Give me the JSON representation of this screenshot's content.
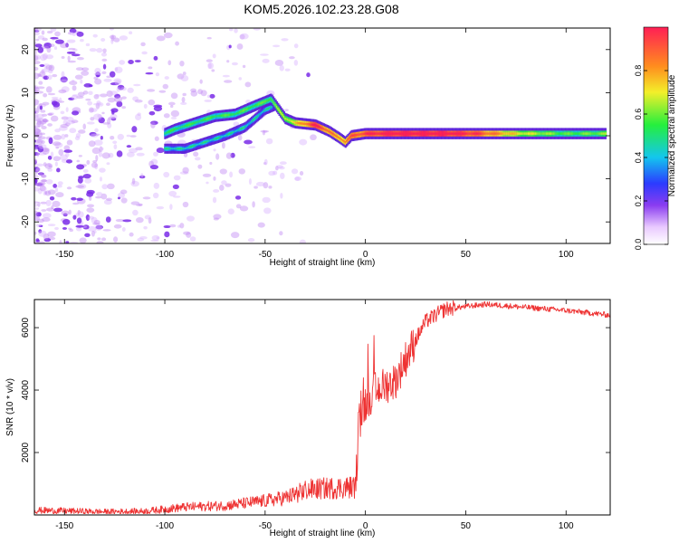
{
  "title": "KOM5.2026.102.23.28.G08",
  "colors": {
    "snr_line": "#ee3333",
    "background": "#ffffff",
    "axis": "#000000",
    "colormap": [
      "#ffffff",
      "#e9c9ff",
      "#8a3cf0",
      "#2b3bff",
      "#13c6ee",
      "#25ef3d",
      "#f3ef2a",
      "#ff8d1e",
      "#ff1f55"
    ]
  },
  "chart_data": [
    {
      "type": "heatmap",
      "name": "spectrogram",
      "xlabel": "Height of straight line (km)",
      "ylabel": "Frequency (Hz)",
      "xlim": [
        -165,
        122
      ],
      "ylim": [
        -25,
        25
      ],
      "xticks": [
        "-150",
        "-100",
        "-50",
        "0",
        "50",
        "100"
      ],
      "yticks": [
        "-20",
        "-10",
        "0",
        "10",
        "20"
      ],
      "colorbar": {
        "label": "Normalized spectral amplitude",
        "range": [
          0,
          1
        ],
        "ticks": [
          "0.0",
          "0.2",
          "0.4",
          "0.6",
          "0.8"
        ]
      },
      "noise_region_km": [
        -165,
        -25
      ],
      "main_trace": [
        {
          "x": -100,
          "y": 0.5
        },
        {
          "x": -95,
          "y": 1.5
        },
        {
          "x": -85,
          "y": 3
        },
        {
          "x": -75,
          "y": 4.5
        },
        {
          "x": -65,
          "y": 5
        },
        {
          "x": -55,
          "y": 7
        },
        {
          "x": -47,
          "y": 8.5
        },
        {
          "x": -40,
          "y": 4
        },
        {
          "x": -35,
          "y": 3
        },
        {
          "x": -25,
          "y": 2.5
        },
        {
          "x": -18,
          "y": 1
        },
        {
          "x": -13,
          "y": -0.5
        },
        {
          "x": -10,
          "y": -1.5
        },
        {
          "x": -7,
          "y": 0
        },
        {
          "x": 0,
          "y": 0.5
        },
        {
          "x": 120,
          "y": 0.5
        }
      ],
      "secondary_trace": [
        {
          "x": -100,
          "y": -3
        },
        {
          "x": -90,
          "y": -3
        },
        {
          "x": -80,
          "y": -1.5
        },
        {
          "x": -70,
          "y": 0
        },
        {
          "x": -60,
          "y": 2
        },
        {
          "x": -50,
          "y": 6
        },
        {
          "x": -45,
          "y": 7
        }
      ],
      "amplitude_along_trace": [
        {
          "x": -100,
          "a": 0.4
        },
        {
          "x": -50,
          "a": 0.45
        },
        {
          "x": -35,
          "a": 0.6
        },
        {
          "x": -25,
          "a": 0.9
        },
        {
          "x": -15,
          "a": 0.7
        },
        {
          "x": 0,
          "a": 0.85
        },
        {
          "x": 15,
          "a": 0.95
        },
        {
          "x": 40,
          "a": 0.95
        },
        {
          "x": 55,
          "a": 0.85
        },
        {
          "x": 75,
          "a": 0.6
        },
        {
          "x": 100,
          "a": 0.45
        },
        {
          "x": 120,
          "a": 0.5
        }
      ]
    },
    {
      "type": "line",
      "name": "snr",
      "xlabel": "Height of straight line (km)",
      "ylabel": "SNR (10 * v/v)",
      "xlim": [
        -165,
        122
      ],
      "ylim": [
        0,
        6900
      ],
      "xticks": [
        "-150",
        "-100",
        "-50",
        "0",
        "50",
        "100"
      ],
      "yticks": [
        "2000",
        "4000",
        "6000"
      ],
      "series": [
        {
          "name": "SNR",
          "envelope": [
            {
              "x": -165,
              "y": 150
            },
            {
              "x": -130,
              "y": 100
            },
            {
              "x": -110,
              "y": 120
            },
            {
              "x": -90,
              "y": 250
            },
            {
              "x": -70,
              "y": 300
            },
            {
              "x": -50,
              "y": 450
            },
            {
              "x": -40,
              "y": 550
            },
            {
              "x": -35,
              "y": 650
            },
            {
              "x": -30,
              "y": 800
            },
            {
              "x": -20,
              "y": 850
            },
            {
              "x": -5,
              "y": 900
            },
            {
              "x": -3,
              "y": 3000
            },
            {
              "x": 0,
              "y": 3600
            },
            {
              "x": 5,
              "y": 4000
            },
            {
              "x": 15,
              "y": 4300
            },
            {
              "x": 20,
              "y": 5000
            },
            {
              "x": 30,
              "y": 6200
            },
            {
              "x": 40,
              "y": 6600
            },
            {
              "x": 60,
              "y": 6750
            },
            {
              "x": 80,
              "y": 6650
            },
            {
              "x": 100,
              "y": 6550
            },
            {
              "x": 122,
              "y": 6400
            }
          ]
        }
      ]
    }
  ]
}
